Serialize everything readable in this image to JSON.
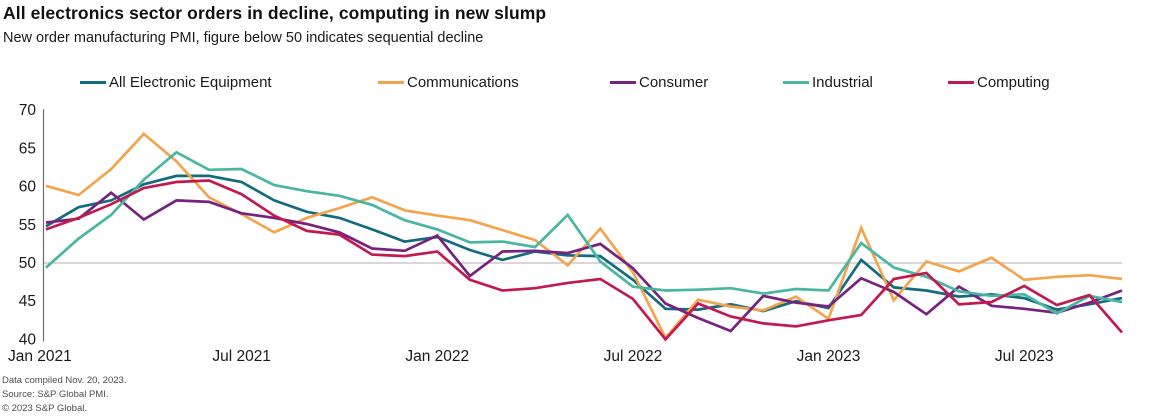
{
  "footer": {
    "line1": "Data compiled Nov. 20, 2023.",
    "line2": "Source: S&P Global PMI.",
    "line3": "© 2023 S&P Global."
  },
  "chart_data": {
    "type": "line",
    "title": "All electronics sector orders in decline, computing in new slump",
    "subtitle": "New order manufacturing PMI, figure below 50 indicates sequential decline",
    "ylim": [
      40,
      70
    ],
    "y_ticks": [
      70,
      65,
      60,
      55,
      50,
      45,
      40
    ],
    "baseline": 50,
    "grid": "horizontal-at-50-only",
    "legend_position": "top",
    "axis_color": "#6b6b6b",
    "gridline_color": "#b1b1b1",
    "tick_label_color": "#1a1a1a",
    "x": [
      "Jan 2021",
      "Feb 2021",
      "Mar 2021",
      "Apr 2021",
      "May 2021",
      "Jun 2021",
      "Jul 2021",
      "Aug 2021",
      "Sep 2021",
      "Oct 2021",
      "Nov 2021",
      "Dec 2021",
      "Jan 2022",
      "Feb 2022",
      "Mar 2022",
      "Apr 2022",
      "May 2022",
      "Jun 2022",
      "Jul 2022",
      "Aug 2022",
      "Sep 2022",
      "Oct 2022",
      "Nov 2022",
      "Dec 2022",
      "Jan 2023",
      "Feb 2023",
      "Mar 2023",
      "Apr 2023",
      "May 2023",
      "Jun 2023",
      "Jul 2023",
      "Aug 2023",
      "Sep 2023",
      "Oct 2023"
    ],
    "x_ticks": [
      {
        "label": "Jan 2021",
        "i": 0
      },
      {
        "label": "Jul 2021",
        "i": 6
      },
      {
        "label": "Jan 2022",
        "i": 12
      },
      {
        "label": "Jul 2022",
        "i": 18
      },
      {
        "label": "Jan 2023",
        "i": 24
      },
      {
        "label": "Jul 2023",
        "i": 30
      }
    ],
    "series": [
      {
        "name": "All Electronic Equipment",
        "color": "#136b80",
        "values": [
          54.8,
          57.3,
          58.2,
          60.3,
          61.4,
          61.4,
          60.6,
          58.2,
          56.7,
          55.9,
          54.4,
          52.8,
          53.4,
          51.7,
          50.4,
          51.5,
          51.0,
          50.9,
          47.8,
          44.0,
          43.9,
          44.6,
          43.7,
          45.0,
          44.1,
          50.4,
          46.8,
          46.4,
          45.6,
          45.9,
          45.4,
          43.9,
          44.6,
          45.4
        ]
      },
      {
        "name": "Communications",
        "color": "#f2a54d",
        "values": [
          60.1,
          58.9,
          62.3,
          66.9,
          63.3,
          58.6,
          56.4,
          54.0,
          55.9,
          57.2,
          58.6,
          56.9,
          56.2,
          55.6,
          54.3,
          53.0,
          49.7,
          54.5,
          48.8,
          40.2,
          45.2,
          44.3,
          43.8,
          45.6,
          42.7,
          54.6,
          45.1,
          50.2,
          48.9,
          50.7,
          47.8,
          48.2,
          48.4,
          47.9
        ]
      },
      {
        "name": "Consumer",
        "color": "#76227f",
        "values": [
          55.3,
          55.8,
          59.2,
          55.7,
          58.2,
          58.0,
          56.5,
          55.9,
          55.1,
          54.0,
          51.9,
          51.6,
          53.6,
          48.3,
          51.5,
          51.6,
          51.3,
          52.5,
          49.3,
          44.7,
          42.8,
          41.1,
          45.7,
          44.8,
          44.3,
          48.0,
          46.2,
          43.3,
          46.9,
          44.4,
          44.0,
          43.5,
          44.8,
          46.4
        ]
      },
      {
        "name": "Industrial",
        "color": "#48b6a0",
        "values": [
          49.4,
          53.2,
          56.3,
          60.9,
          64.5,
          62.2,
          62.3,
          60.2,
          59.4,
          58.8,
          57.6,
          55.6,
          54.4,
          52.7,
          52.8,
          52.1,
          56.3,
          50.2,
          46.9,
          46.4,
          46.5,
          46.7,
          46.0,
          46.6,
          46.4,
          52.6,
          49.4,
          48.2,
          46.3,
          45.7,
          45.9,
          43.4,
          45.7,
          44.9
        ]
      },
      {
        "name": "Computing",
        "color": "#c11a50",
        "values": [
          54.4,
          55.9,
          57.7,
          59.8,
          60.6,
          60.8,
          59.0,
          56.2,
          54.2,
          53.7,
          51.1,
          50.9,
          51.5,
          47.8,
          46.4,
          46.7,
          47.4,
          47.9,
          45.3,
          40.0,
          44.7,
          43.0,
          42.1,
          41.7,
          42.5,
          43.2,
          47.9,
          48.7,
          44.6,
          44.9,
          47.0,
          44.5,
          45.8,
          40.9
        ]
      }
    ]
  }
}
